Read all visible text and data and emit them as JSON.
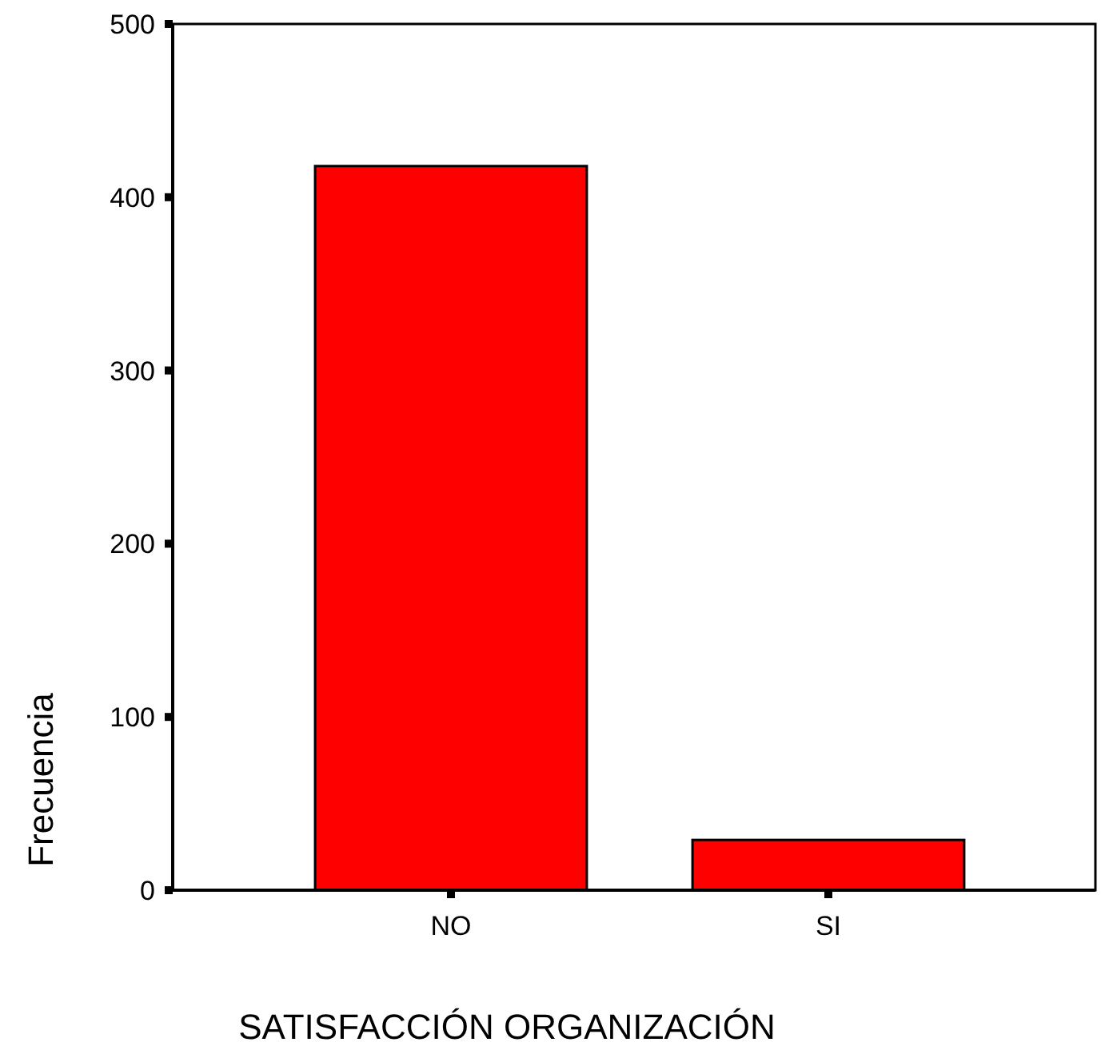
{
  "chart_data": {
    "type": "bar",
    "xlabel": "SATISFACCIÓN ORGANIZACIÓN",
    "ylabel": "Frecuencia",
    "categories": [
      "NO",
      "SI"
    ],
    "values": [
      418,
      29
    ],
    "color": "#ff0000",
    "ylim": [
      0,
      500
    ],
    "yticks": [
      0,
      100,
      200,
      300,
      400,
      500
    ],
    "grid": false
  }
}
